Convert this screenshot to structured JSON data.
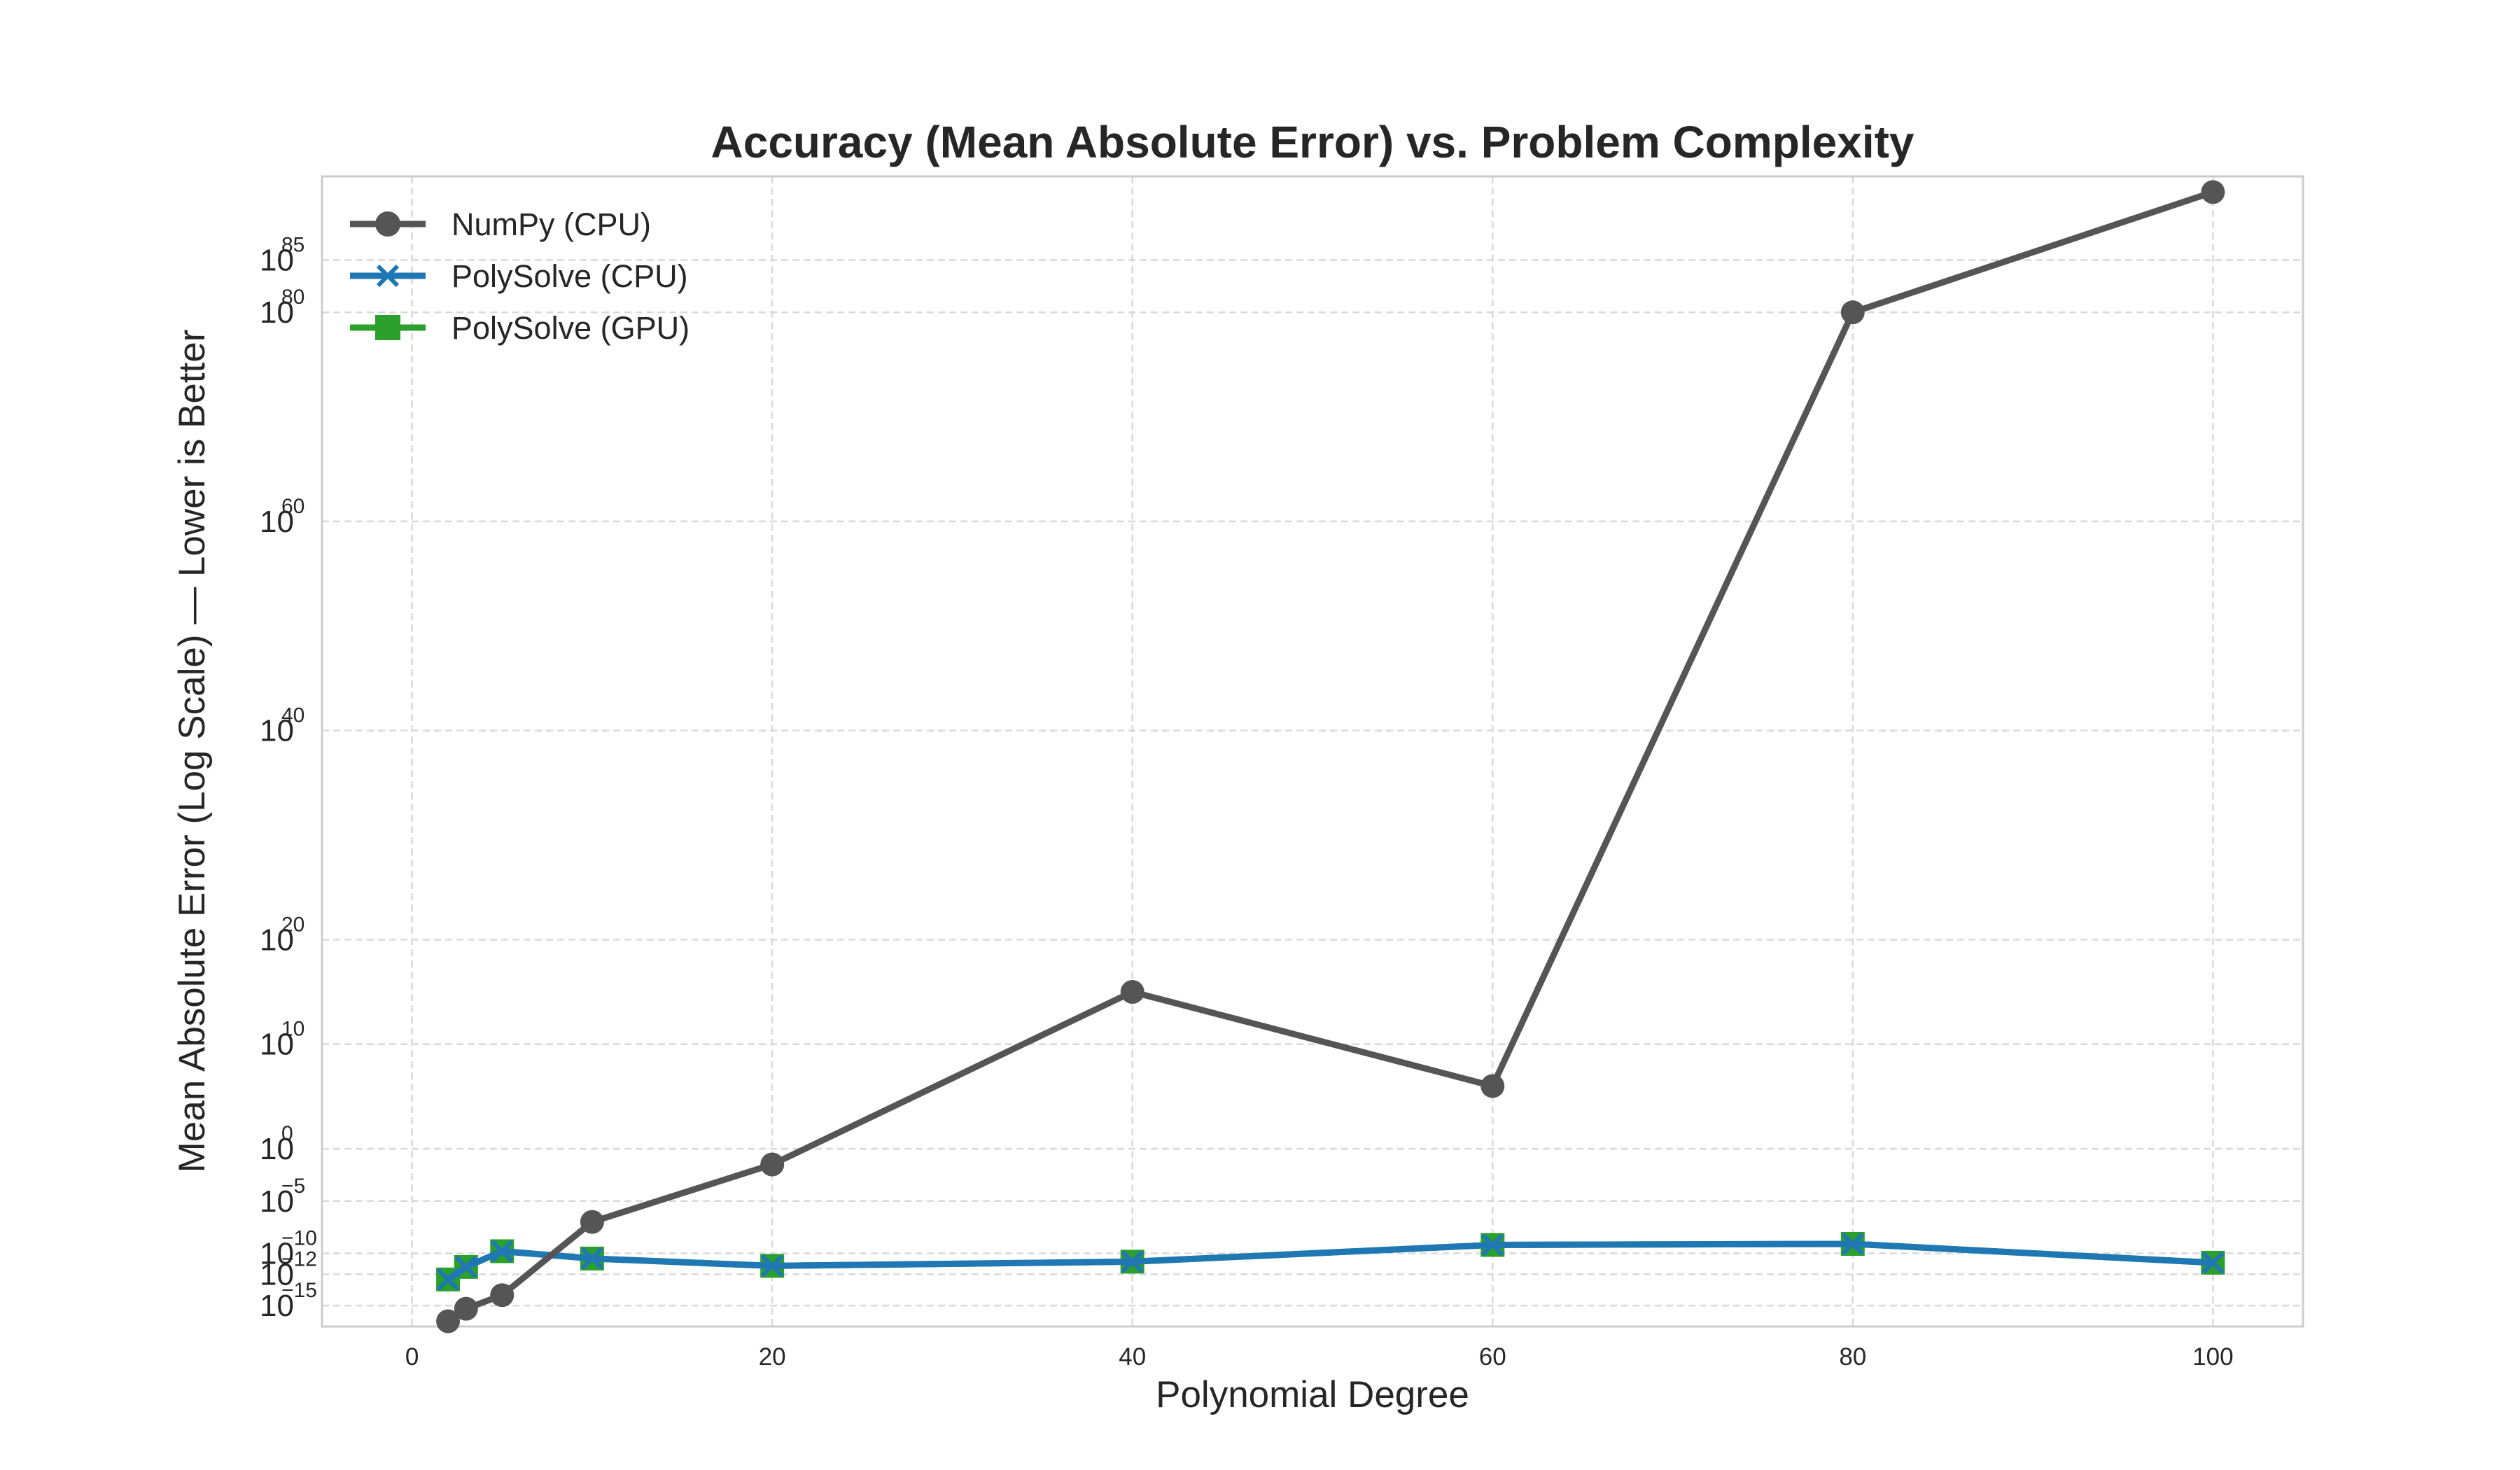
{
  "chart_data": {
    "type": "line",
    "title": "Accuracy (Mean Absolute Error) vs. Problem Complexity",
    "xlabel": "Polynomial Degree",
    "ylabel": "Mean Absolute Error (Log Scale) — Lower is Better",
    "xlim": [
      -5,
      105
    ],
    "xticks": [
      0,
      20,
      40,
      60,
      80,
      100
    ],
    "ylim_log10": [
      -17,
      93
    ],
    "yscale": "log",
    "yticks": [
      {
        "base": "10",
        "exp": "−15"
      },
      {
        "base": "10",
        "exp": "−12"
      },
      {
        "base": "10",
        "exp": "−10"
      },
      {
        "base": "10",
        "exp": "−5"
      },
      {
        "base": "10",
        "exp": "0"
      },
      {
        "base": "10",
        "exp": "10"
      },
      {
        "base": "10",
        "exp": "20"
      },
      {
        "base": "10",
        "exp": "40"
      },
      {
        "base": "10",
        "exp": "60"
      },
      {
        "base": "10",
        "exp": "80"
      },
      {
        "base": "10",
        "exp": "85"
      }
    ],
    "ytick_values_log10": [
      -15,
      -12,
      -10,
      -5,
      0,
      10,
      20,
      40,
      60,
      80,
      85
    ],
    "grid": true,
    "legend_position": "top-left",
    "x": [
      2,
      3,
      5,
      10,
      20,
      40,
      60,
      80,
      100
    ],
    "series": [
      {
        "name": "NumPy (CPU)",
        "color": "#555555",
        "marker": "circle",
        "log10_values": [
          -16.5,
          -15.3,
          -14.0,
          -7.0,
          -1.5,
          15.0,
          6.0,
          80.0,
          91.5
        ]
      },
      {
        "name": "PolySolve (CPU)",
        "color": "#1f77b4",
        "marker": "x",
        "log10_values": [
          -12.5,
          -11.3,
          -9.8,
          -10.5,
          -11.2,
          -10.8,
          -9.2,
          -9.1,
          -10.9
        ]
      },
      {
        "name": "PolySolve (GPU)",
        "color": "#2ca02c",
        "marker": "square",
        "log10_values": [
          -12.5,
          -11.3,
          -9.8,
          -10.5,
          -11.2,
          -10.8,
          -9.2,
          -9.1,
          -10.9
        ]
      }
    ]
  }
}
